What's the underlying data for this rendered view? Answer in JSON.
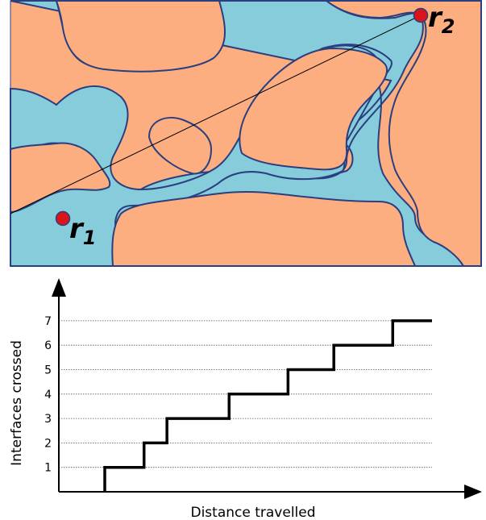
{
  "domain_panel": {
    "colors": {
      "phase_a": "#87CCDB",
      "phase_b": "#FDAE80",
      "interface": "#2A3F80",
      "point": "#D9141A"
    },
    "point_1": {
      "letter": "r",
      "subscript": "1"
    },
    "point_2": {
      "letter": "r",
      "subscript": "2"
    }
  },
  "chart_data": {
    "type": "line",
    "step": true,
    "xlabel": "Distance travelled",
    "ylabel": "Interfaces crossed",
    "yticks": [
      "1",
      "2",
      "3",
      "4",
      "5",
      "6",
      "7"
    ],
    "ylim": [
      0,
      7
    ],
    "grid": "horizontal dotted",
    "series": [
      {
        "x": [
          0,
          0.12,
          0.19,
          0.38,
          0.56,
          0.7,
          0.88,
          0.92,
          1.0
        ],
        "y": [
          0,
          1,
          2,
          3,
          4,
          5,
          6,
          7,
          7
        ]
      }
    ]
  }
}
